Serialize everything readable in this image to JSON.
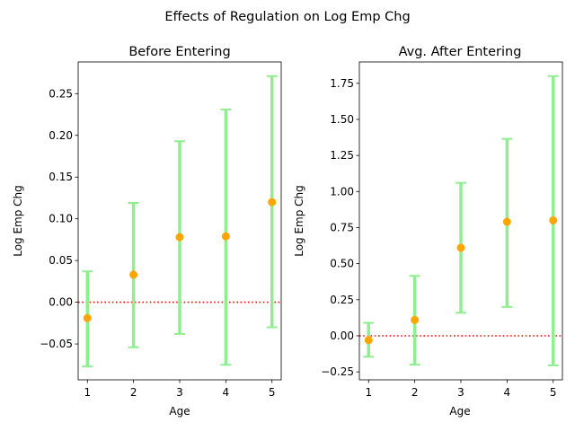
{
  "figure": {
    "suptitle": "Effects of Regulation on Log Emp Chg"
  },
  "colors": {
    "errorbar": "#90ee90",
    "marker": "#ffa500",
    "zero_line": "#ff0000",
    "axes": "#000000"
  },
  "chart_data": [
    {
      "type": "scatter",
      "title": "Before Entering",
      "xlabel": "Age",
      "ylabel": "Log Emp Chg",
      "x": [
        1,
        2,
        3,
        4,
        5
      ],
      "x_ticks": [
        "1",
        "2",
        "3",
        "4",
        "5"
      ],
      "xlim": [
        0.8,
        5.2
      ],
      "ylim": [
        -0.093,
        0.288
      ],
      "y_ticks": [
        -0.05,
        0.0,
        0.05,
        0.1,
        0.15,
        0.2,
        0.25
      ],
      "y_tick_labels": [
        "−0.05",
        "0.00",
        "0.05",
        "0.10",
        "0.15",
        "0.20",
        "0.25"
      ],
      "series": [
        {
          "values": [
            -0.019,
            0.033,
            0.078,
            0.079,
            0.12
          ],
          "lower": [
            -0.077,
            -0.054,
            -0.038,
            -0.075,
            -0.03
          ],
          "upper": [
            0.037,
            0.119,
            0.193,
            0.231,
            0.271
          ]
        }
      ],
      "reference_line": {
        "y": 0,
        "style": "dotted"
      },
      "grid": false
    },
    {
      "type": "scatter",
      "title": "Avg. After Entering",
      "xlabel": "Age",
      "ylabel": "Log Emp Chg",
      "x": [
        1,
        2,
        3,
        4,
        5
      ],
      "x_ticks": [
        "1",
        "2",
        "3",
        "4",
        "5"
      ],
      "xlim": [
        0.8,
        5.2
      ],
      "ylim": [
        -0.305,
        1.898
      ],
      "y_ticks": [
        -0.25,
        0.0,
        0.25,
        0.5,
        0.75,
        1.0,
        1.25,
        1.5,
        1.75
      ],
      "y_tick_labels": [
        "−0.25",
        "0.00",
        "0.25",
        "0.50",
        "0.75",
        "1.00",
        "1.25",
        "1.50",
        "1.75"
      ],
      "series": [
        {
          "values": [
            -0.03,
            0.11,
            0.61,
            0.79,
            0.8
          ],
          "lower": [
            -0.145,
            -0.2,
            0.16,
            0.2,
            -0.205
          ],
          "upper": [
            0.09,
            0.415,
            1.06,
            1.365,
            1.8
          ]
        }
      ],
      "reference_line": {
        "y": 0,
        "style": "dotted"
      },
      "grid": false
    }
  ]
}
